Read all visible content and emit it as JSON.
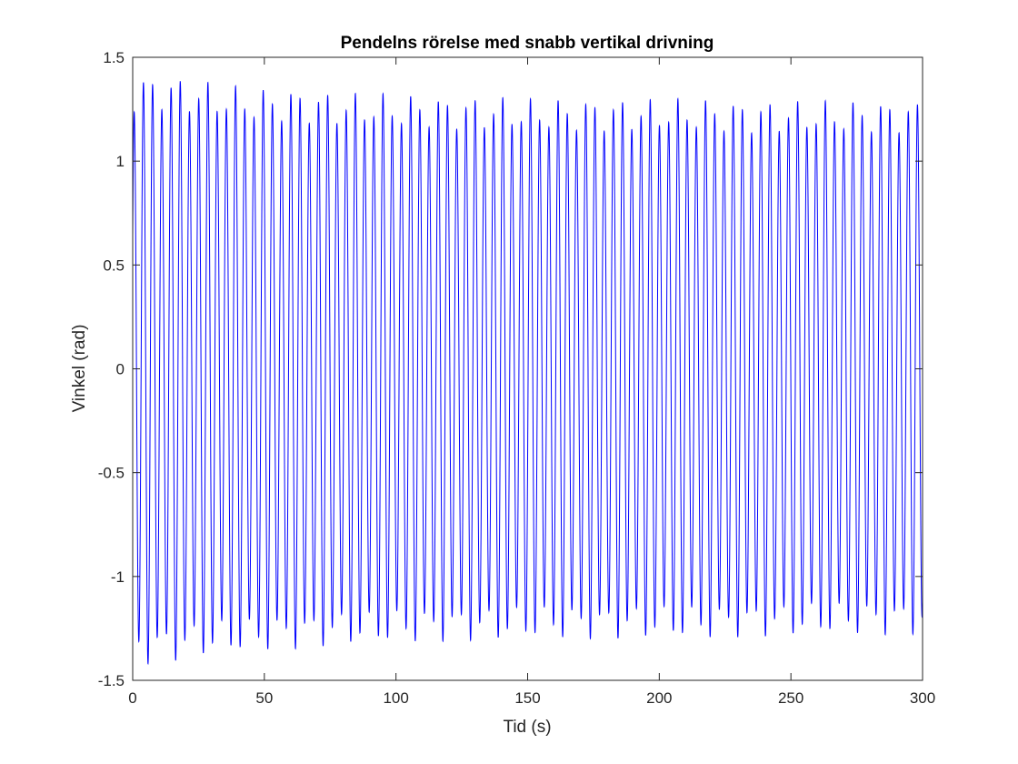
{
  "chart_data": {
    "type": "line",
    "title": "Pendelns rörelse med snabb vertikal drivning",
    "xlabel": "Tid (s)",
    "ylabel": "Vinkel (rad)",
    "xlim": [
      0,
      300
    ],
    "ylim": [
      -1.5,
      1.5
    ],
    "xticks": [
      0,
      50,
      100,
      150,
      200,
      250,
      300
    ],
    "xtick_labels": [
      "0",
      "50",
      "100",
      "150",
      "200",
      "250",
      "300"
    ],
    "yticks": [
      -1.5,
      -1,
      -0.5,
      0,
      0.5,
      1,
      1.5
    ],
    "ytick_labels": [
      "-1.5",
      "-1",
      "-0.5",
      "0",
      "0.5",
      "1",
      "1.5"
    ],
    "grid": false,
    "series": [
      {
        "color": "#0000ff",
        "period": 3.5,
        "x": [
          0,
          10,
          20,
          30,
          40,
          50,
          60,
          70,
          80,
          90,
          100,
          110,
          120,
          130,
          140,
          150,
          160,
          170,
          180,
          190,
          200,
          210,
          220,
          230,
          240,
          250,
          260,
          270,
          280,
          290,
          300
        ],
        "upper_envelope": [
          1.4,
          1.42,
          1.4,
          1.38,
          1.36,
          1.35,
          1.35,
          1.34,
          1.33,
          1.33,
          1.32,
          1.32,
          1.31,
          1.31,
          1.31,
          1.3,
          1.3,
          1.3,
          1.3,
          1.3,
          1.3,
          1.3,
          1.3,
          1.29,
          1.29,
          1.29,
          1.29,
          1.29,
          1.29,
          1.29,
          1.29
        ],
        "lower_envelope": [
          -1.42,
          -1.42,
          -1.4,
          -1.38,
          -1.37,
          -1.36,
          -1.35,
          -1.34,
          -1.33,
          -1.33,
          -1.32,
          -1.32,
          -1.31,
          -1.31,
          -1.31,
          -1.3,
          -1.3,
          -1.3,
          -1.3,
          -1.3,
          -1.3,
          -1.3,
          -1.3,
          -1.29,
          -1.29,
          -1.29,
          -1.28,
          -1.28,
          -1.28,
          -1.28,
          -1.28
        ]
      }
    ]
  }
}
